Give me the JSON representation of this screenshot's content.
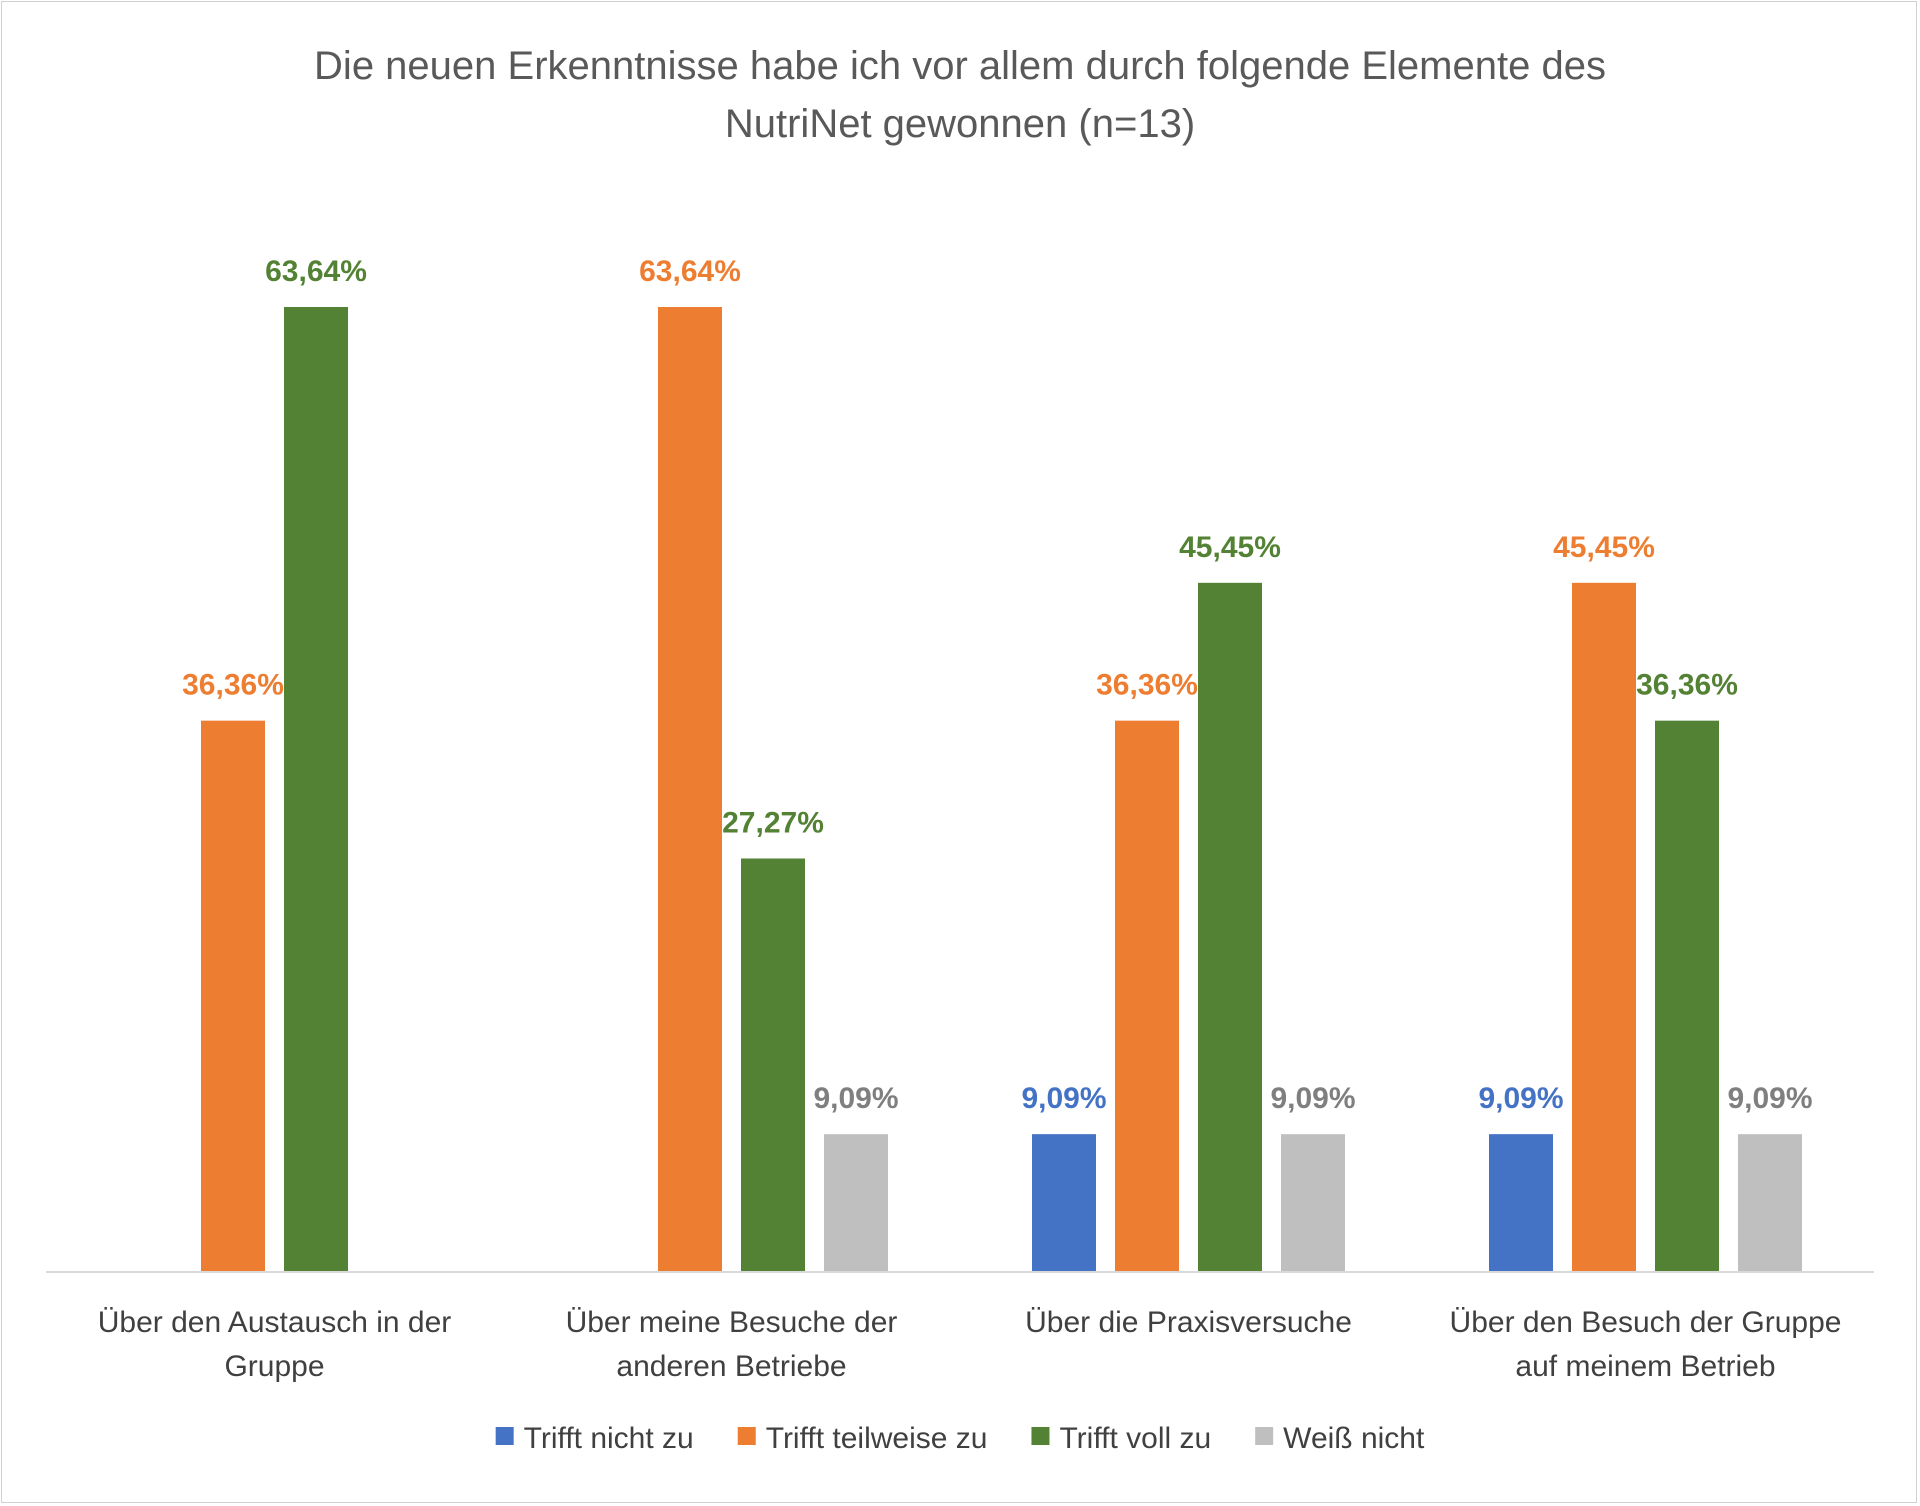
{
  "chart_data": {
    "type": "bar",
    "title_lines": [
      "Die neuen Erkenntnisse habe ich vor allem durch folgende Elemente des",
      "NutriNet gewonnen (n=13)"
    ],
    "categories": [
      [
        "Über den Austausch in der",
        "Gruppe"
      ],
      [
        "Über meine Besuche der",
        "anderen Betriebe"
      ],
      [
        "Über die Praxisversuche"
      ],
      [
        "Über den Besuch der Gruppe",
        "auf meinem Betrieb"
      ]
    ],
    "series": [
      {
        "name": "Trifft nicht zu",
        "color": "#4472c4",
        "values": [
          null,
          null,
          9.09,
          9.09
        ],
        "labels": [
          null,
          null,
          "9,09%",
          "9,09%"
        ]
      },
      {
        "name": "Trifft teilweise zu",
        "color": "#ed7d31",
        "values": [
          36.36,
          63.64,
          36.36,
          45.45
        ],
        "labels": [
          "36,36%",
          "63,64%",
          "36,36%",
          "45,45%"
        ]
      },
      {
        "name": "Trifft voll zu",
        "color": "#548235",
        "values": [
          63.64,
          27.27,
          45.45,
          36.36
        ],
        "labels": [
          "63,64%",
          "27,27%",
          "45,45%",
          "36,36%"
        ]
      },
      {
        "name": "Weiß nicht",
        "color": "#bfbfbf",
        "labels_color": "#7f7f7f",
        "values": [
          null,
          9.09,
          9.09,
          9.09
        ],
        "labels": [
          null,
          "9,09%",
          "9,09%",
          "9,09%"
        ]
      }
    ],
    "ylim": [
      0,
      63.64
    ],
    "xlabel": "",
    "ylabel": "",
    "grid": false,
    "legend": "bottom"
  }
}
